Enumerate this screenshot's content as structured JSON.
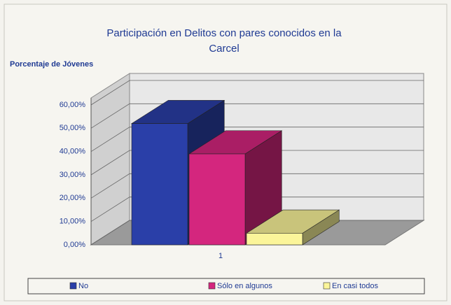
{
  "chart_data": {
    "type": "bar3d",
    "title": "Participación en Delitos con pares conocidos en la Carcel",
    "y_label": "Porcentaje de Jóvenes",
    "categories": [
      "1"
    ],
    "series": [
      {
        "name": "No",
        "color": "#2a3fa8",
        "values": [
          52
        ]
      },
      {
        "name": "Sólo en algunos",
        "color": "#d4267e",
        "values": [
          39
        ]
      },
      {
        "name": "En casi todos",
        "color": "#fbf59a",
        "values": [
          5
        ]
      }
    ],
    "ylim": [
      0,
      60
    ],
    "yticks": [
      {
        "value": 0,
        "label": "0,00%"
      },
      {
        "value": 10,
        "label": "10,00%"
      },
      {
        "value": 20,
        "label": "20,00%"
      },
      {
        "value": 30,
        "label": "30,00%"
      },
      {
        "value": 40,
        "label": "40,00%"
      },
      {
        "value": 50,
        "label": "50,00%"
      },
      {
        "value": 60,
        "label": "60,00%"
      }
    ],
    "grid": true,
    "legend": "bottom"
  }
}
